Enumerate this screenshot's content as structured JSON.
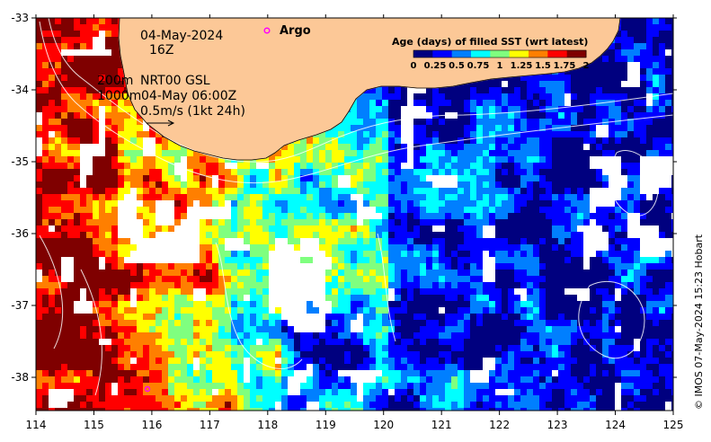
{
  "map": {
    "date_label": "04-May-2024",
    "hour_label": "16Z",
    "argo_label": "Argo",
    "iso_lines": [
      "200m",
      "1000m"
    ],
    "product_lines": [
      "NRT00 GSL",
      "04-May 06:00Z"
    ],
    "vector_label": "0.5m/s (1kt 24h)",
    "credit": "© IMOS 07-May-2024 15:23 Hobart",
    "lon_ticks": [
      "114",
      "115",
      "116",
      "117",
      "118",
      "119",
      "120",
      "121",
      "122",
      "123",
      "124",
      "125"
    ],
    "lat_ticks": [
      "-33",
      "-34",
      "-35",
      "-36",
      "-37",
      "-38"
    ],
    "colors": {
      "land": "#fcc897",
      "frame": "#000000",
      "argo_marker": "#ff00ff"
    }
  },
  "colorbar": {
    "title": "Age (days) of filled SST (wrt latest)",
    "ticks": [
      "0",
      "0.25",
      "0.5",
      "0.75",
      "1",
      "1.25",
      "1.5",
      "1.75",
      "2"
    ],
    "colors": [
      "#00007f",
      "#0000ff",
      "#007fff",
      "#00ffff",
      "#7fff7f",
      "#ffff00",
      "#ff7f00",
      "#ff0000",
      "#7f0000"
    ]
  }
}
